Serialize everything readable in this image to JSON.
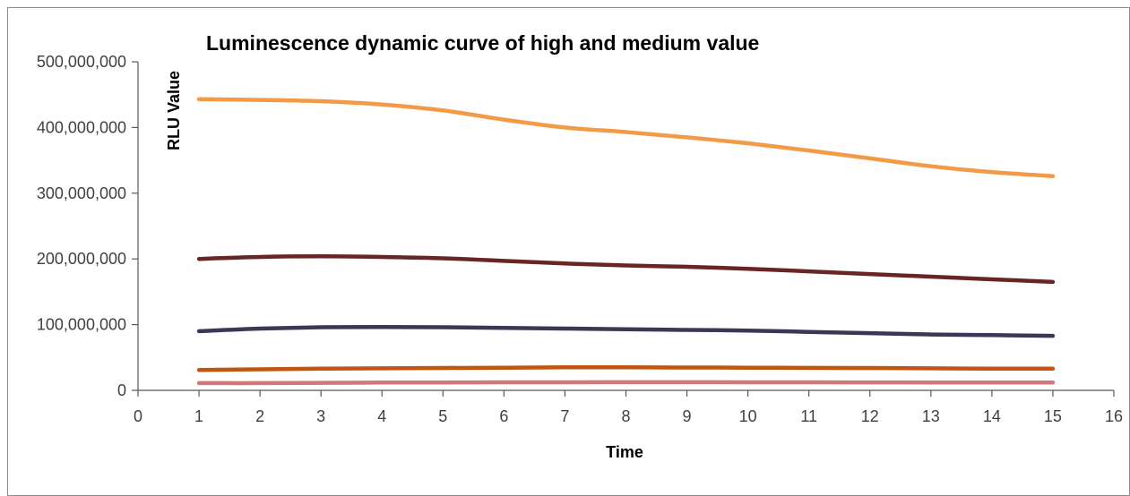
{
  "chart_data": {
    "type": "line",
    "title": "Luminescence dynamic curve of high and medium value",
    "xlabel": "Time",
    "ylabel": "RLU Value",
    "xlim": [
      0,
      16
    ],
    "ylim": [
      0,
      500000000
    ],
    "x_ticks": [
      0,
      1,
      2,
      3,
      4,
      5,
      6,
      7,
      8,
      9,
      10,
      11,
      12,
      13,
      14,
      15,
      16
    ],
    "y_ticks": [
      0,
      100000000,
      200000000,
      300000000,
      400000000,
      500000000
    ],
    "y_tick_labels": [
      "0",
      "100,000,000",
      "200,000,000",
      "300,000,000",
      "400,000,000",
      "500,000,000"
    ],
    "grid": false,
    "legend": "none",
    "x": [
      1,
      2,
      3,
      4,
      5,
      6,
      7,
      8,
      9,
      10,
      11,
      12,
      13,
      14,
      15
    ],
    "series": [
      {
        "color": "#f39a47",
        "values": [
          443000000,
          442000000,
          440000000,
          435000000,
          426000000,
          412000000,
          400000000,
          393000000,
          385000000,
          376000000,
          365000000,
          353000000,
          341000000,
          332000000,
          326000000
        ]
      },
      {
        "color": "#6b2424",
        "values": [
          200000000,
          203000000,
          204000000,
          203000000,
          201000000,
          197000000,
          193000000,
          190000000,
          188000000,
          185000000,
          181000000,
          177000000,
          173000000,
          169000000,
          165000000
        ]
      },
      {
        "color": "#3f3557",
        "values": [
          90000000,
          94000000,
          96000000,
          96500000,
          96000000,
          95000000,
          94000000,
          93000000,
          92000000,
          91000000,
          89000000,
          87000000,
          85000000,
          84000000,
          83000000
        ]
      },
      {
        "color": "#c0560f",
        "values": [
          31000000,
          32000000,
          33000000,
          33500000,
          34000000,
          34500000,
          35000000,
          35000000,
          34800000,
          34500000,
          34200000,
          34000000,
          33500000,
          33000000,
          33000000
        ]
      },
      {
        "color": "#d17878",
        "values": [
          11000000,
          11000000,
          11500000,
          11800000,
          12000000,
          12200000,
          12300000,
          12400000,
          12400000,
          12300000,
          12200000,
          12100000,
          12000000,
          12000000,
          12000000
        ]
      }
    ]
  }
}
